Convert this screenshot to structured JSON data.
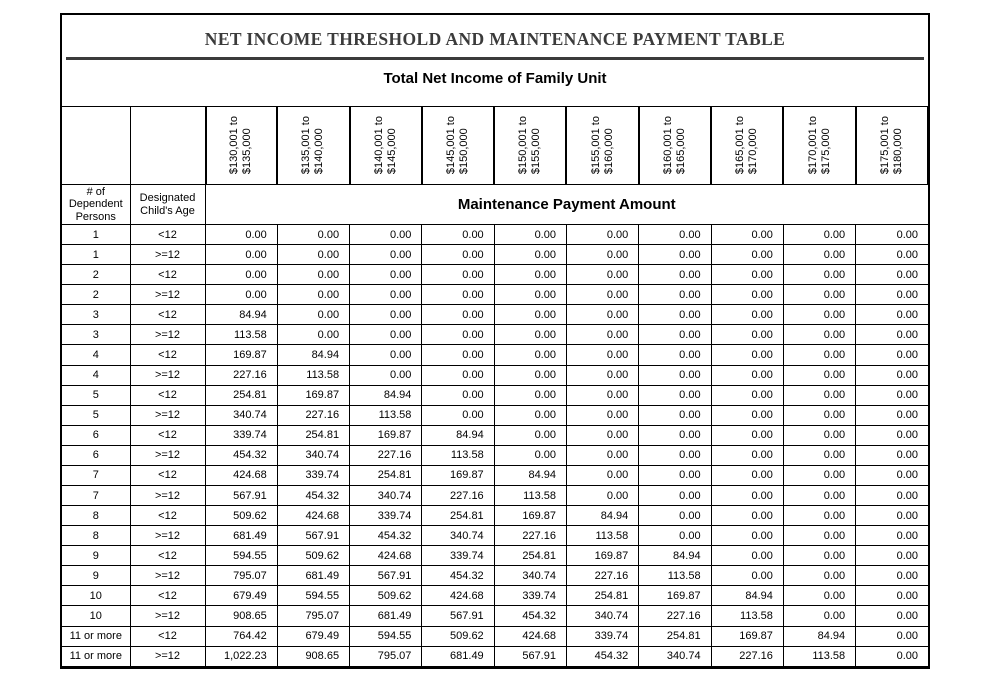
{
  "table": {
    "title": "NET INCOME THRESHOLD AND MAINTENANCE PAYMENT TABLE",
    "subtitle": "Total Net Income of Family Unit",
    "payment_header": "Maintenance Payment Amount",
    "corner": {
      "persons_label": "# of\nDependent\nPersons",
      "age_label": "Designated\nChild's Age"
    },
    "income_columns": [
      "$130,001 to\n$135,000",
      "$135,001 to\n$140,000",
      "$140,001 to\n$145,000",
      "$145,001 to\n$150,000",
      "$150,001 to\n$155,000",
      "$155,001 to\n$160,000",
      "$160,001 to\n$165,000",
      "$165,001 to\n$170,000",
      "$170,001 to\n$175,000",
      "$175,001 to\n$180,000"
    ],
    "rows": [
      {
        "persons": "1",
        "age": "<12",
        "values": [
          "0.00",
          "0.00",
          "0.00",
          "0.00",
          "0.00",
          "0.00",
          "0.00",
          "0.00",
          "0.00",
          "0.00"
        ]
      },
      {
        "persons": "1",
        "age": ">=12",
        "values": [
          "0.00",
          "0.00",
          "0.00",
          "0.00",
          "0.00",
          "0.00",
          "0.00",
          "0.00",
          "0.00",
          "0.00"
        ]
      },
      {
        "persons": "2",
        "age": "<12",
        "values": [
          "0.00",
          "0.00",
          "0.00",
          "0.00",
          "0.00",
          "0.00",
          "0.00",
          "0.00",
          "0.00",
          "0.00"
        ]
      },
      {
        "persons": "2",
        "age": ">=12",
        "values": [
          "0.00",
          "0.00",
          "0.00",
          "0.00",
          "0.00",
          "0.00",
          "0.00",
          "0.00",
          "0.00",
          "0.00"
        ]
      },
      {
        "persons": "3",
        "age": "<12",
        "values": [
          "84.94",
          "0.00",
          "0.00",
          "0.00",
          "0.00",
          "0.00",
          "0.00",
          "0.00",
          "0.00",
          "0.00"
        ]
      },
      {
        "persons": "3",
        "age": ">=12",
        "values": [
          "113.58",
          "0.00",
          "0.00",
          "0.00",
          "0.00",
          "0.00",
          "0.00",
          "0.00",
          "0.00",
          "0.00"
        ]
      },
      {
        "persons": "4",
        "age": "<12",
        "values": [
          "169.87",
          "84.94",
          "0.00",
          "0.00",
          "0.00",
          "0.00",
          "0.00",
          "0.00",
          "0.00",
          "0.00"
        ]
      },
      {
        "persons": "4",
        "age": ">=12",
        "values": [
          "227.16",
          "113.58",
          "0.00",
          "0.00",
          "0.00",
          "0.00",
          "0.00",
          "0.00",
          "0.00",
          "0.00"
        ]
      },
      {
        "persons": "5",
        "age": "<12",
        "values": [
          "254.81",
          "169.87",
          "84.94",
          "0.00",
          "0.00",
          "0.00",
          "0.00",
          "0.00",
          "0.00",
          "0.00"
        ]
      },
      {
        "persons": "5",
        "age": ">=12",
        "values": [
          "340.74",
          "227.16",
          "113.58",
          "0.00",
          "0.00",
          "0.00",
          "0.00",
          "0.00",
          "0.00",
          "0.00"
        ]
      },
      {
        "persons": "6",
        "age": "<12",
        "values": [
          "339.74",
          "254.81",
          "169.87",
          "84.94",
          "0.00",
          "0.00",
          "0.00",
          "0.00",
          "0.00",
          "0.00"
        ]
      },
      {
        "persons": "6",
        "age": ">=12",
        "values": [
          "454.32",
          "340.74",
          "227.16",
          "113.58",
          "0.00",
          "0.00",
          "0.00",
          "0.00",
          "0.00",
          "0.00"
        ]
      },
      {
        "persons": "7",
        "age": "<12",
        "values": [
          "424.68",
          "339.74",
          "254.81",
          "169.87",
          "84.94",
          "0.00",
          "0.00",
          "0.00",
          "0.00",
          "0.00"
        ]
      },
      {
        "persons": "7",
        "age": ">=12",
        "values": [
          "567.91",
          "454.32",
          "340.74",
          "227.16",
          "113.58",
          "0.00",
          "0.00",
          "0.00",
          "0.00",
          "0.00"
        ]
      },
      {
        "persons": "8",
        "age": "<12",
        "values": [
          "509.62",
          "424.68",
          "339.74",
          "254.81",
          "169.87",
          "84.94",
          "0.00",
          "0.00",
          "0.00",
          "0.00"
        ]
      },
      {
        "persons": "8",
        "age": ">=12",
        "values": [
          "681.49",
          "567.91",
          "454.32",
          "340.74",
          "227.16",
          "113.58",
          "0.00",
          "0.00",
          "0.00",
          "0.00"
        ]
      },
      {
        "persons": "9",
        "age": "<12",
        "values": [
          "594.55",
          "509.62",
          "424.68",
          "339.74",
          "254.81",
          "169.87",
          "84.94",
          "0.00",
          "0.00",
          "0.00"
        ]
      },
      {
        "persons": "9",
        "age": ">=12",
        "values": [
          "795.07",
          "681.49",
          "567.91",
          "454.32",
          "340.74",
          "227.16",
          "113.58",
          "0.00",
          "0.00",
          "0.00"
        ]
      },
      {
        "persons": "10",
        "age": "<12",
        "values": [
          "679.49",
          "594.55",
          "509.62",
          "424.68",
          "339.74",
          "254.81",
          "169.87",
          "84.94",
          "0.00",
          "0.00"
        ]
      },
      {
        "persons": "10",
        "age": ">=12",
        "values": [
          "908.65",
          "795.07",
          "681.49",
          "567.91",
          "454.32",
          "340.74",
          "227.16",
          "113.58",
          "0.00",
          "0.00"
        ]
      },
      {
        "persons": "11 or more",
        "age": "<12",
        "values": [
          "764.42",
          "679.49",
          "594.55",
          "509.62",
          "424.68",
          "339.74",
          "254.81",
          "169.87",
          "84.94",
          "0.00"
        ]
      },
      {
        "persons": "11 or more",
        "age": ">=12",
        "values": [
          "1,022.23",
          "908.65",
          "795.07",
          "681.49",
          "567.91",
          "454.32",
          "340.74",
          "227.16",
          "113.58",
          "0.00"
        ]
      }
    ],
    "colors": {
      "grid_line": "#000000",
      "title_text": "#3b3b3b",
      "divider": "#3b3b3b"
    }
  }
}
